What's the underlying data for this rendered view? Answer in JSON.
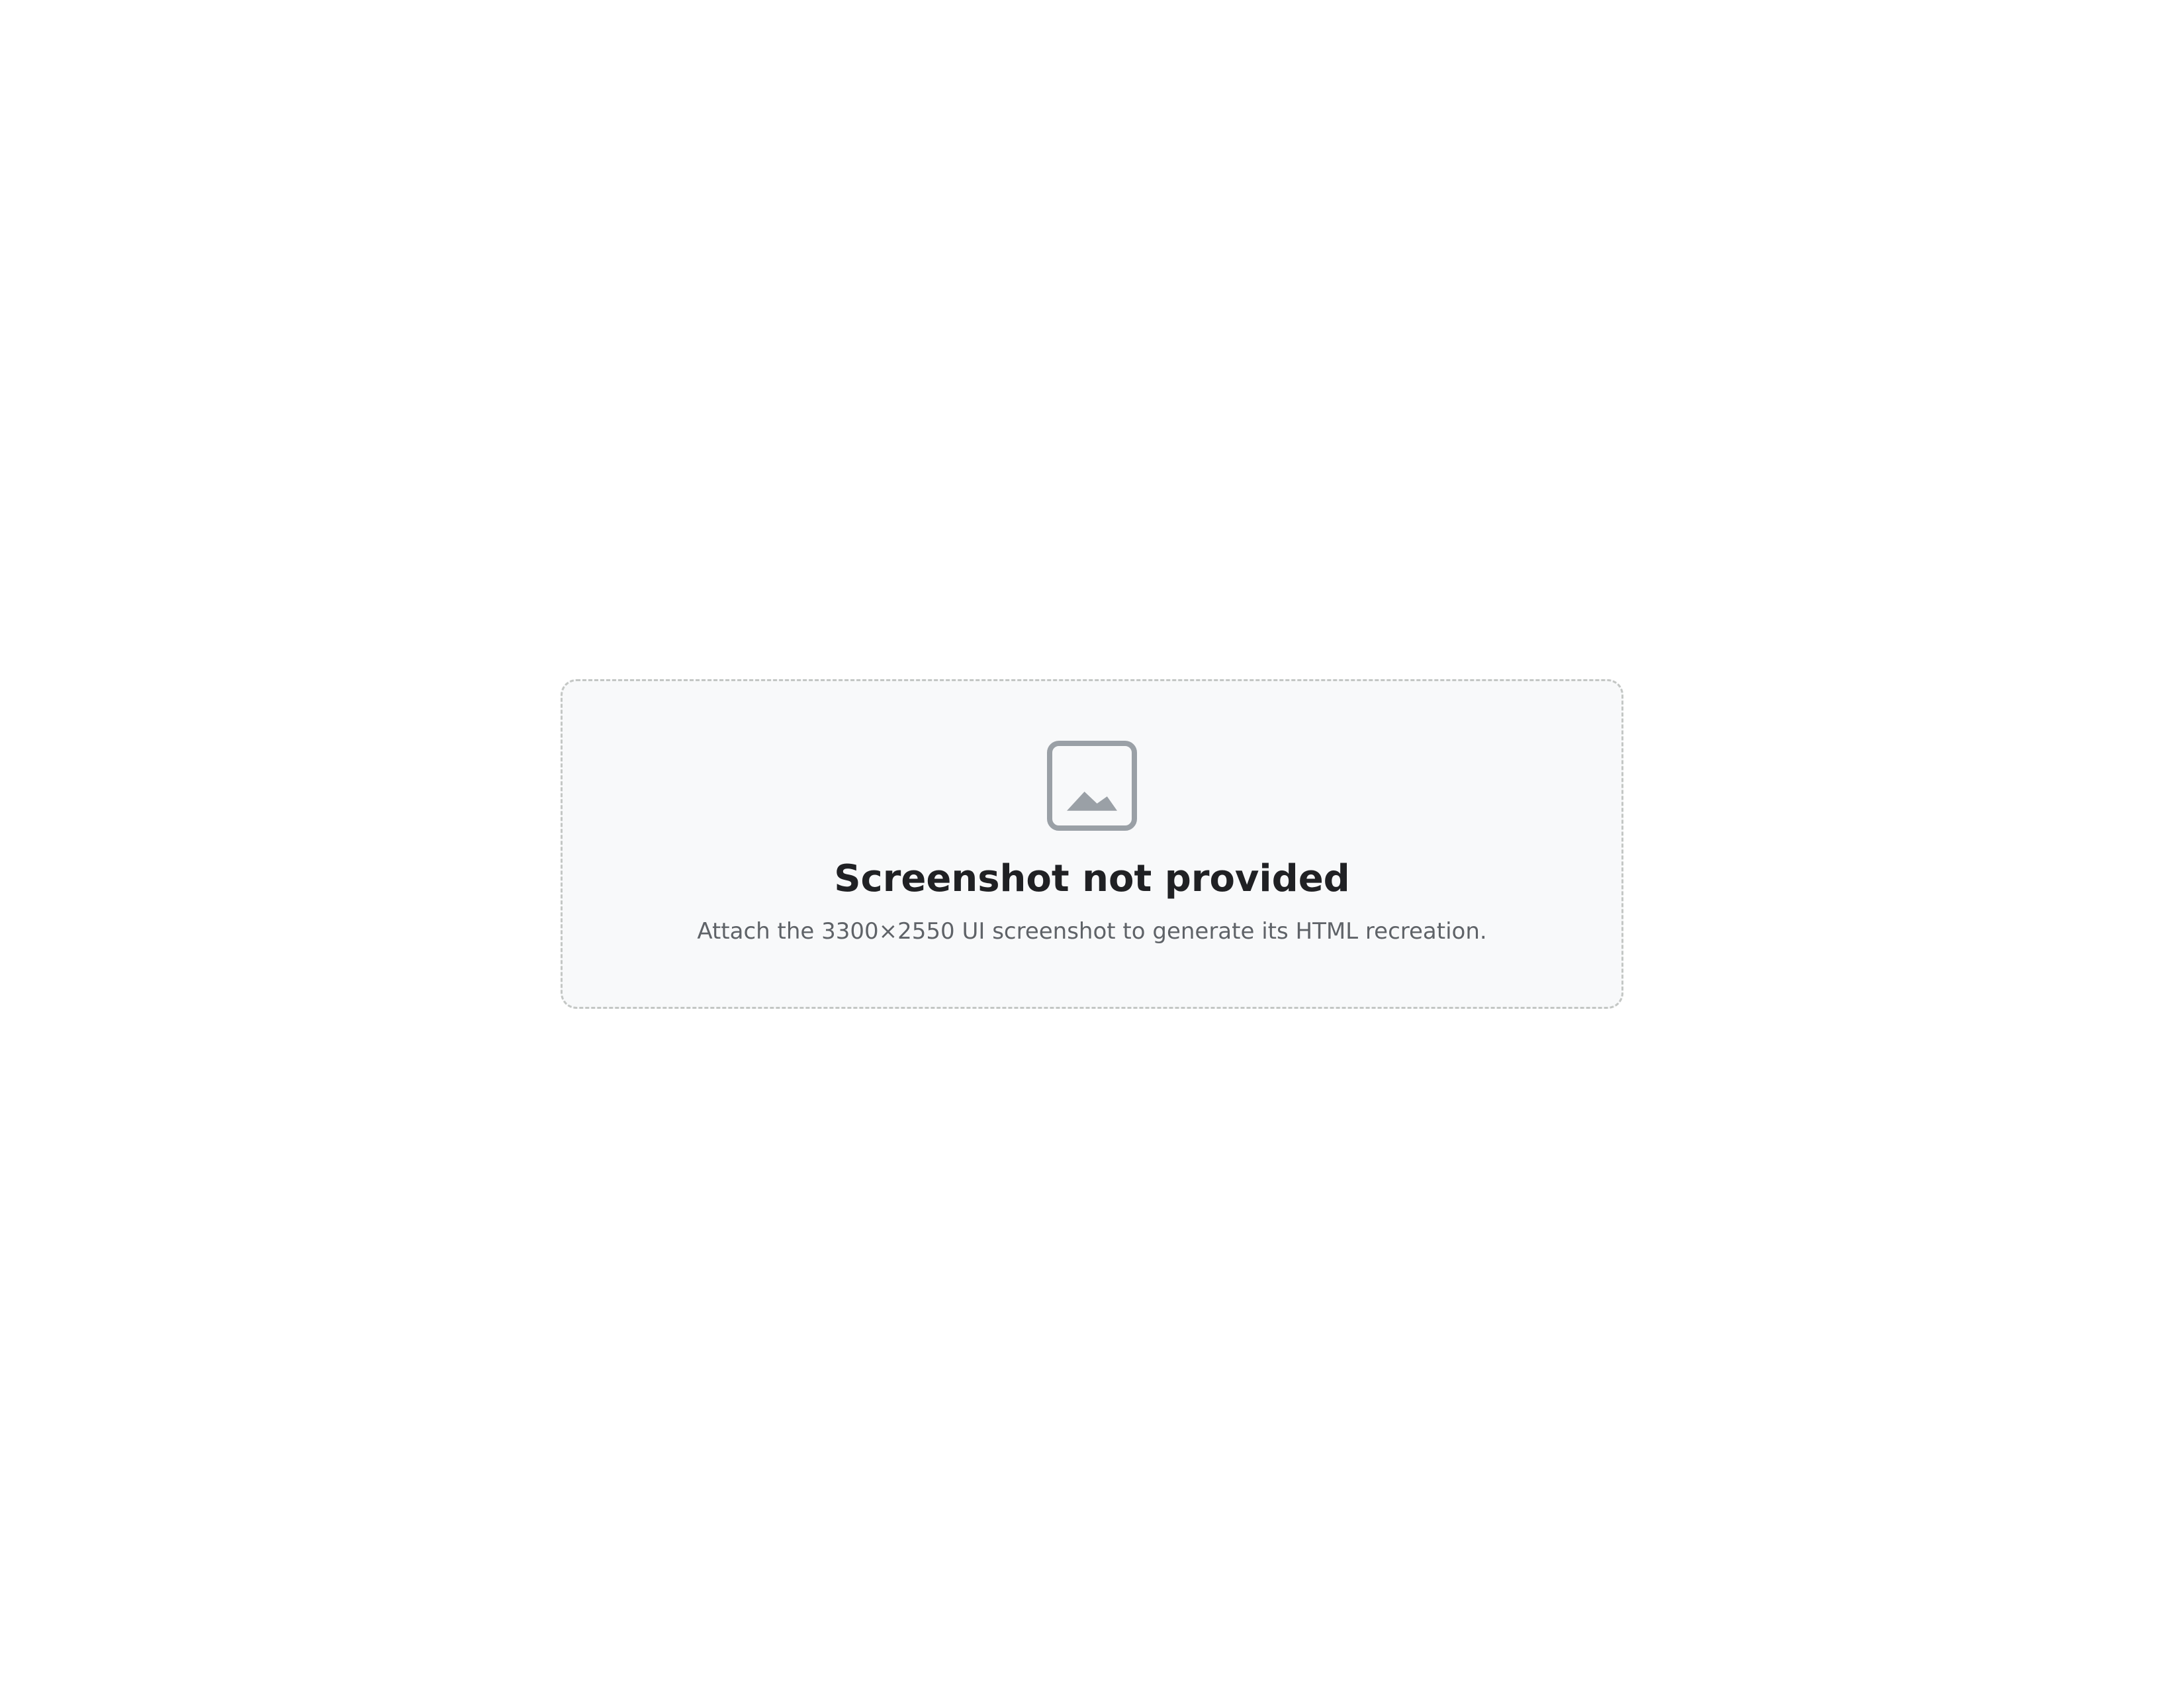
{
  "notice": {
    "title": "Screenshot not provided",
    "message": "Attach the 3300×2550 UI screenshot to generate its HTML recreation."
  }
}
